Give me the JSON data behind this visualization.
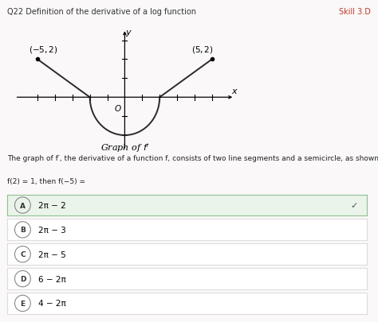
{
  "title": "Q22 Definition of the derivative of a log function",
  "skill": "Skill 3.D",
  "title_color": "#333333",
  "skill_color": "#c0392b",
  "header_bg": "#ede8e8",
  "bg_color": "#faf8f8",
  "graph_caption": "Graph of f'",
  "problem_line1": "The graph of f′, the derivative of a function f, consists of two line segments and a semicircle, as shown in the figure above. If",
  "problem_line2": "f(2) = 1, then f(−5) =",
  "options": [
    {
      "label": "A",
      "text": "2π − 2",
      "correct": true
    },
    {
      "label": "B",
      "text": "2π − 3",
      "correct": false
    },
    {
      "label": "C",
      "text": "2π − 5",
      "correct": false
    },
    {
      "label": "D",
      "text": "6 − 2π",
      "correct": false
    },
    {
      "label": "E",
      "text": "4 − 2π",
      "correct": false
    }
  ],
  "correct_bg": "#eaf4ea",
  "correct_border": "#90c090",
  "option_bg": "#ffffff",
  "option_border": "#dddddd",
  "line_color": "#2a2a2a"
}
